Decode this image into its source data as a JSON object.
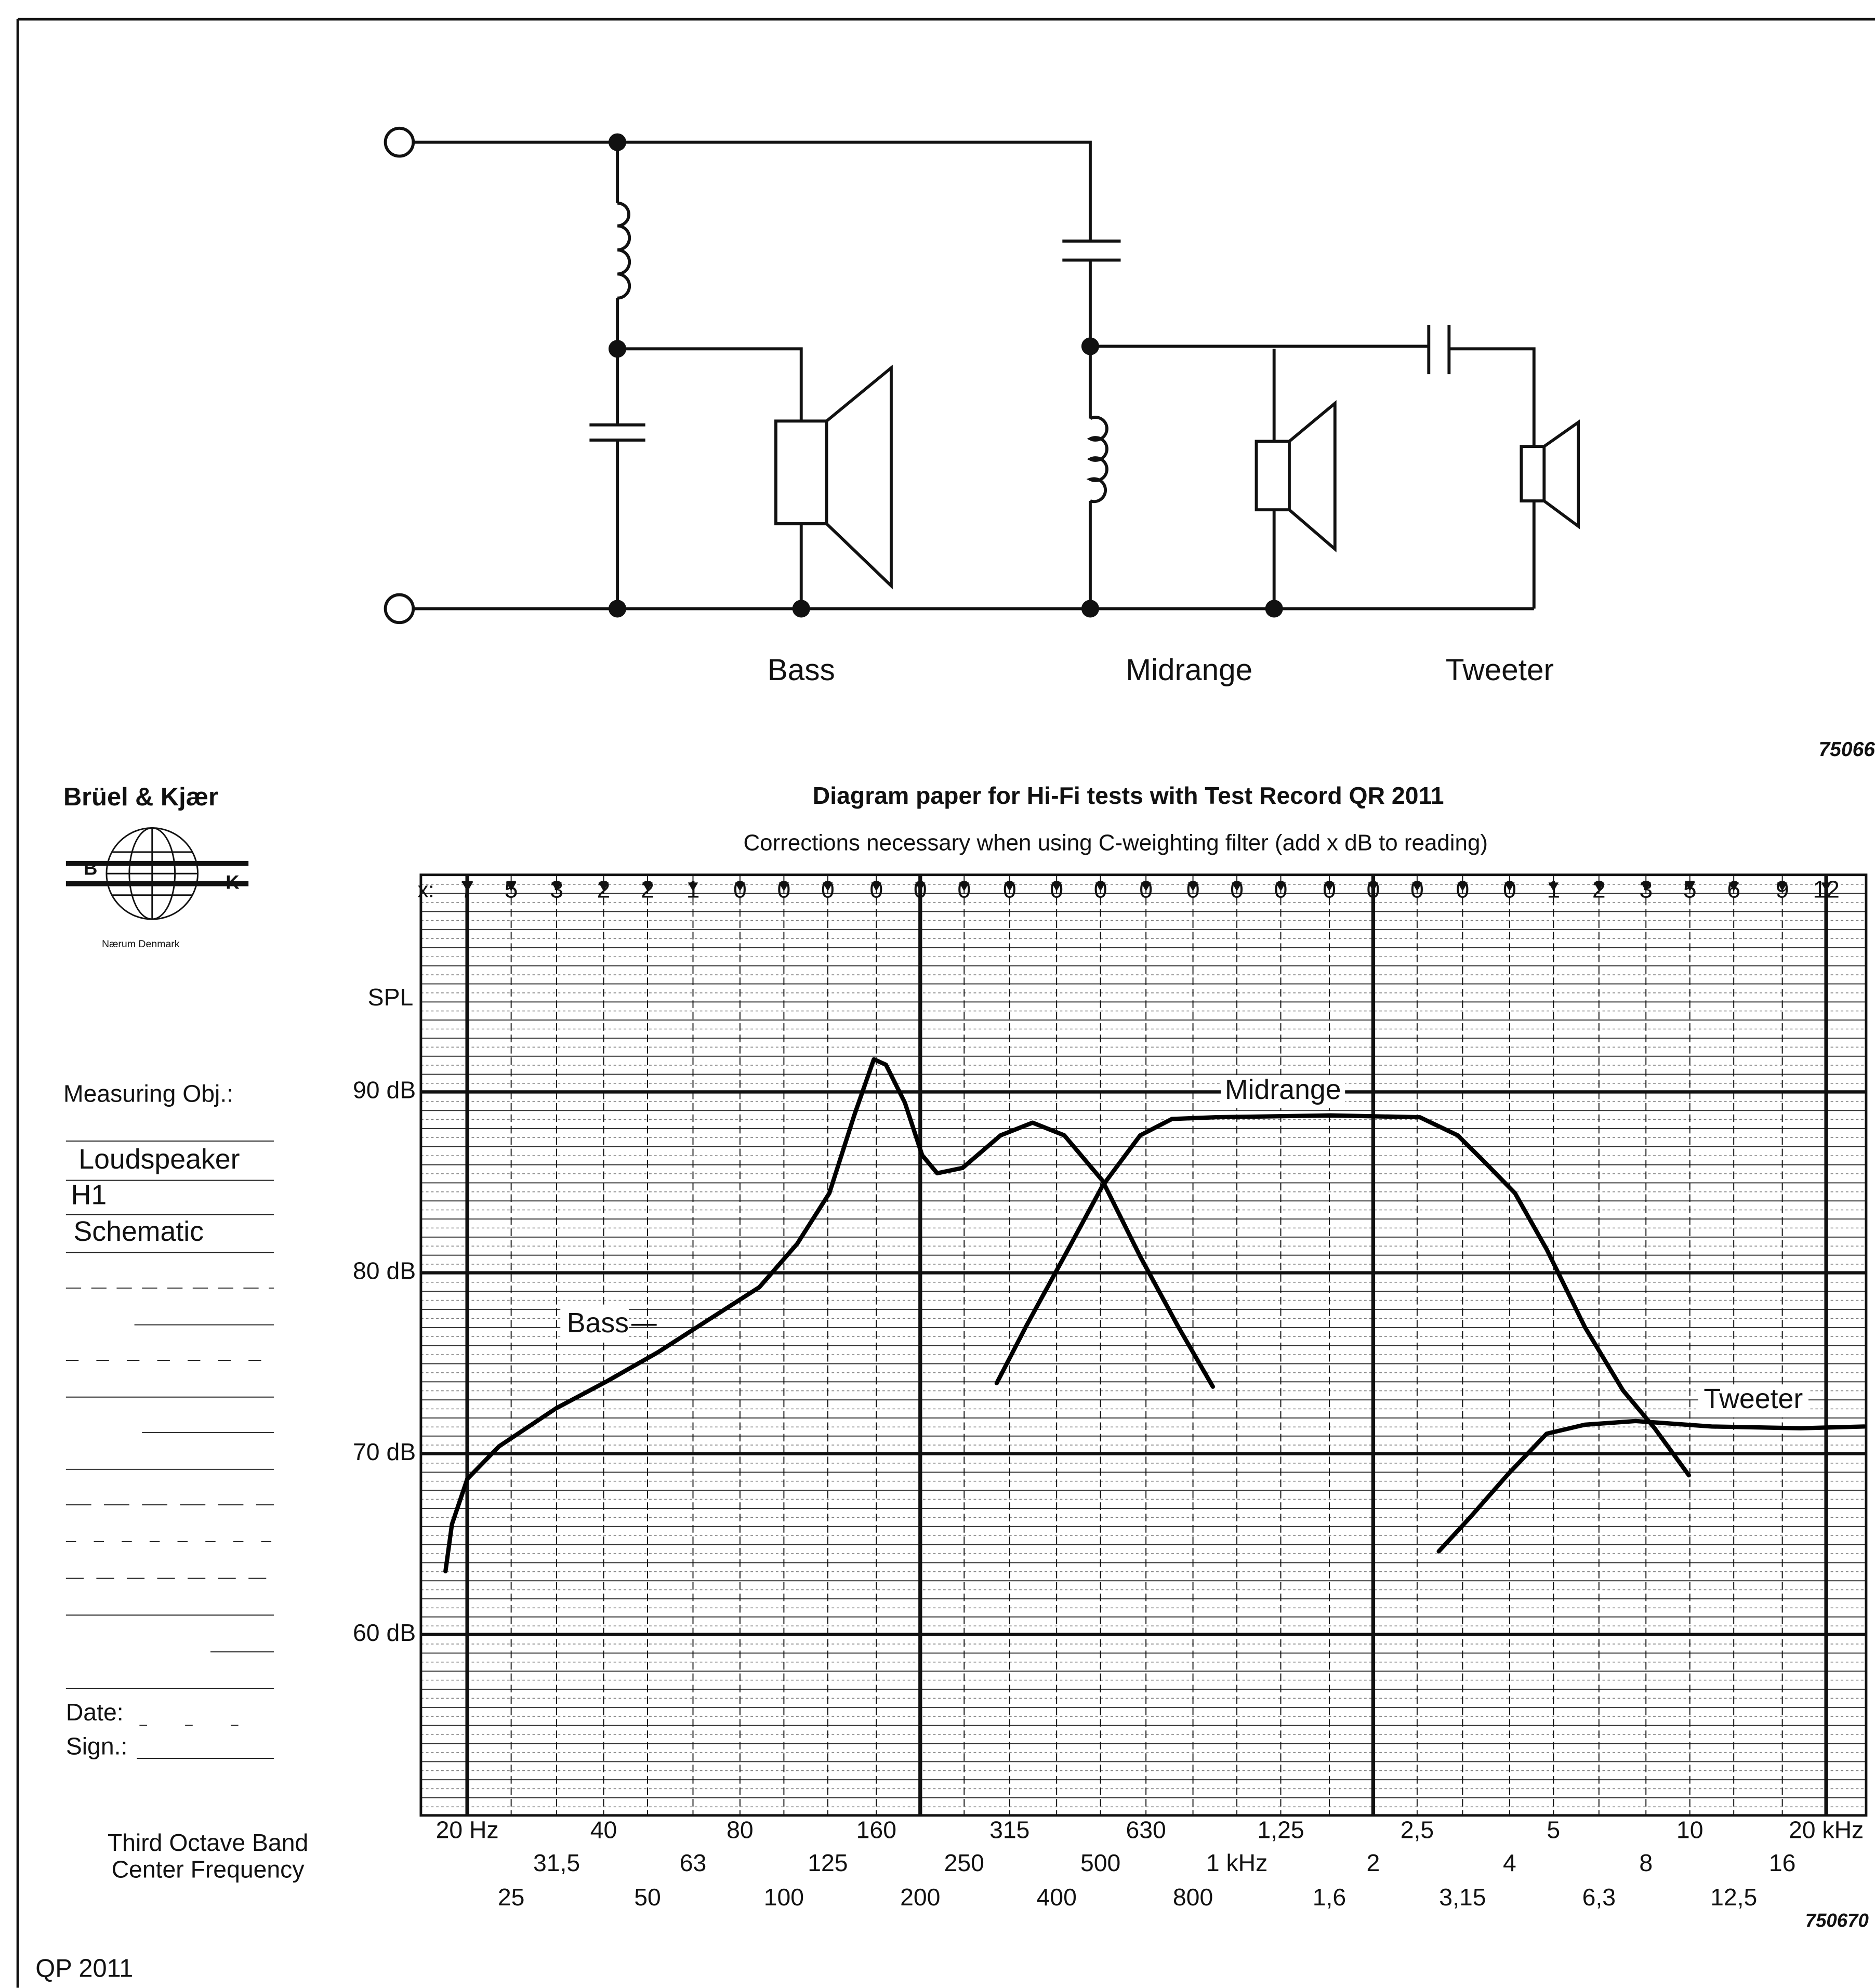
{
  "header": {
    "brand": "Brüel & Kjær",
    "logo_letters": [
      "B",
      "K"
    ],
    "location": "Nærum Denmark",
    "code_top": "75066",
    "code_bottom": "750670",
    "form_id": "QP 2011"
  },
  "circuit": {
    "labels": [
      "Bass",
      "Midrange",
      "Tweeter"
    ]
  },
  "form": {
    "measuring_obj": "Measuring Obj.:",
    "entries": [
      "Loudspeaker",
      "H1",
      "Schematic"
    ],
    "date": "Date:",
    "sign": "Sign.:",
    "axis_caption": [
      "Third Octave Band",
      "Center Frequency"
    ]
  },
  "chart_data": {
    "type": "line",
    "title": "Diagram paper for Hi-Fi tests with Test Record QR 2011",
    "subtitle": "Corrections necessary when using C-weighting filter (add x dB to reading)",
    "y_label": "SPL",
    "xscale": "log",
    "grid": true,
    "xlim": [
      15.8,
      24500
    ],
    "ylim": [
      50,
      102
    ],
    "xticks": [
      {
        "value": 20,
        "label": "20 Hz"
      },
      25,
      {
        "value": 31.5,
        "label": "31,5"
      },
      40,
      50,
      63,
      80,
      100,
      125,
      160,
      200,
      250,
      315,
      400,
      500,
      630,
      800,
      {
        "value": 1000,
        "label": "1 kHz"
      },
      {
        "value": 1250,
        "label": "1,25"
      },
      {
        "value": 1600,
        "label": "1,6"
      },
      {
        "value": 2000,
        "label": "2"
      },
      {
        "value": 2500,
        "label": "2,5"
      },
      {
        "value": 3150,
        "label": "3,15"
      },
      {
        "value": 4000,
        "label": "4"
      },
      {
        "value": 5000,
        "label": "5"
      },
      {
        "value": 6300,
        "label": "6,3"
      },
      {
        "value": 8000,
        "label": "8"
      },
      {
        "value": 10000,
        "label": "10"
      },
      {
        "value": 12500,
        "label": "12,5"
      },
      {
        "value": 16000,
        "label": "16"
      },
      {
        "value": 20000,
        "label": "20 kHz"
      }
    ],
    "yticks": [
      {
        "value": 60,
        "label": "60 dB"
      },
      {
        "value": 70,
        "label": "70 dB"
      },
      {
        "value": 80,
        "label": "80 dB"
      },
      {
        "value": 90,
        "label": "90 dB"
      }
    ],
    "corrections": {
      "label": "x:",
      "values": [
        7,
        5,
        3,
        2,
        2,
        1,
        0,
        0,
        0,
        0,
        0,
        0,
        0,
        0,
        0,
        0,
        0,
        0,
        0,
        0,
        0,
        0,
        0,
        0,
        1,
        2,
        3,
        5,
        6,
        9,
        12
      ]
    },
    "series": [
      {
        "name": "Bass",
        "color": "#000000",
        "x": [
          17.9,
          18.5,
          20,
          23.5,
          31.4,
          40.7,
          52.7,
          68.2,
          88.3,
          107,
          126,
          143,
          158,
          168,
          185,
          202,
          218,
          248,
          301,
          354,
          416,
          505,
          612,
          743,
          885
        ],
        "values": [
          63.5,
          66.1,
          68.6,
          70.4,
          72.5,
          74.0,
          75.6,
          77.4,
          79.2,
          81.6,
          84.4,
          88.7,
          91.8,
          91.5,
          89.4,
          86.5,
          85.5,
          85.8,
          87.6,
          88.3,
          87.6,
          85.1,
          80.9,
          77.0,
          73.7
        ]
      },
      {
        "name": "Midrange",
        "color": "#000000",
        "x": [
          295,
          342,
          416,
          505,
          612,
          719,
          902,
          1611,
          2533,
          3073,
          3499,
          4111,
          4830,
          5864,
          7118,
          8361,
          9950
        ],
        "values": [
          73.9,
          77.0,
          80.9,
          84.8,
          87.6,
          88.5,
          88.6,
          88.7,
          88.6,
          87.6,
          86.2,
          84.4,
          81.3,
          77.0,
          73.5,
          71.4,
          68.8
        ]
      },
      {
        "name": "Tweeter",
        "color": "#000000",
        "x": [
          2790,
          3279,
          3980,
          4830,
          5864,
          7590,
          11170,
          17570,
          24260
        ],
        "values": [
          64.6,
          66.5,
          68.9,
          71.1,
          71.6,
          71.8,
          71.5,
          71.4,
          71.5
        ]
      }
    ]
  }
}
